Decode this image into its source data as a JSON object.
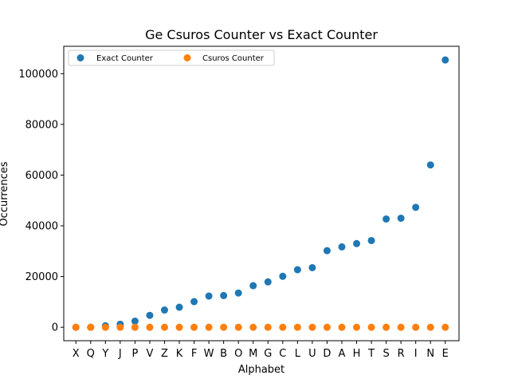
{
  "chart_data": {
    "type": "scatter",
    "title": "Ge Csuros Counter vs Exact Counter",
    "xlabel": "Alphabet",
    "ylabel": "Occurrences",
    "categories": [
      "X",
      "Q",
      "Y",
      "J",
      "P",
      "V",
      "Z",
      "K",
      "F",
      "W",
      "B",
      "O",
      "M",
      "G",
      "C",
      "L",
      "U",
      "D",
      "A",
      "H",
      "T",
      "S",
      "R",
      "I",
      "N",
      "E"
    ],
    "ylim": [
      -5300,
      110800
    ],
    "yticks": [
      0,
      20000,
      40000,
      60000,
      80000,
      100000
    ],
    "ytick_labels": [
      "0",
      "20000",
      "40000",
      "60000",
      "80000",
      "100000"
    ],
    "grid": false,
    "legend": {
      "placement": "top-left",
      "columns": 2
    },
    "series": [
      {
        "name": "Exact Counter",
        "color": "#1f77b4",
        "values": [
          0,
          0,
          600,
          1200,
          2400,
          4700,
          6800,
          7900,
          10100,
          12300,
          12500,
          13500,
          16400,
          17900,
          20100,
          22700,
          23500,
          30200,
          31700,
          33000,
          34200,
          42700,
          43000,
          47300,
          64000,
          105400
        ]
      },
      {
        "name": "Csuros Counter",
        "color": "#ff7f0e",
        "values": [
          0,
          0,
          0,
          0,
          0,
          0,
          0,
          0,
          0,
          0,
          0,
          0,
          0,
          0,
          0,
          0,
          0,
          0,
          0,
          0,
          0,
          0,
          0,
          0,
          0,
          0
        ]
      }
    ]
  }
}
